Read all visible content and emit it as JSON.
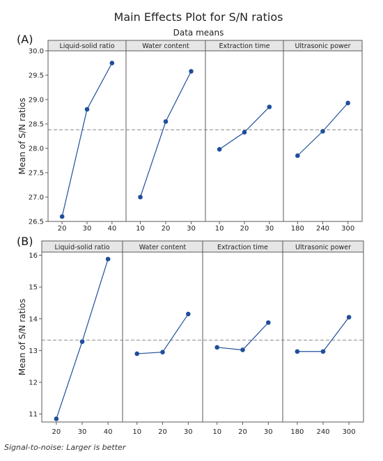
{
  "title": "Main Effects Plot for S/N ratios",
  "subtitle": "Data means",
  "footnote": "Signal-to-noise: Larger is better",
  "colors": {
    "series": "#1f4e9a",
    "mean_line": "#8a8a8a",
    "strip_bg": "#e6e6e6",
    "frame": "#5a5a5a"
  },
  "chart_data": [
    {
      "type": "line",
      "panel_label": "(A)",
      "ylabel": "Mean of S/N ratios",
      "ylim": [
        26.5,
        30.0
      ],
      "yticks": [
        "26.5",
        "27.0",
        "27.5",
        "28.0",
        "28.5",
        "29.0",
        "29.5",
        "30.0"
      ],
      "grand_mean": 28.38,
      "factors": [
        {
          "name": "Liquid-solid ratio",
          "x": [
            "20",
            "30",
            "40"
          ],
          "values": [
            26.6,
            28.8,
            29.75
          ]
        },
        {
          "name": "Water content",
          "x": [
            "10",
            "20",
            "30"
          ],
          "values": [
            27.0,
            28.55,
            29.58
          ]
        },
        {
          "name": "Extraction time",
          "x": [
            "10",
            "20",
            "30"
          ],
          "values": [
            27.98,
            28.33,
            28.85
          ]
        },
        {
          "name": "Ultrasonic power",
          "x": [
            "180",
            "240",
            "300"
          ],
          "values": [
            27.85,
            28.35,
            28.93
          ]
        }
      ]
    },
    {
      "type": "line",
      "panel_label": "(B)",
      "ylabel": "Mean of S/N ratios",
      "ylim": [
        10.75,
        16.1
      ],
      "yticks": [
        "11",
        "12",
        "13",
        "14",
        "15",
        "16"
      ],
      "grand_mean": 13.33,
      "factors": [
        {
          "name": "Liquid-solid ratio",
          "x": [
            "20",
            "30",
            "40"
          ],
          "values": [
            10.85,
            13.28,
            15.88
          ]
        },
        {
          "name": "Water content",
          "x": [
            "10",
            "20",
            "30"
          ],
          "values": [
            12.9,
            12.95,
            14.15
          ]
        },
        {
          "name": "Extraction time",
          "x": [
            "10",
            "20",
            "30"
          ],
          "values": [
            13.1,
            13.02,
            13.88
          ]
        },
        {
          "name": "Ultrasonic power",
          "x": [
            "180",
            "240",
            "300"
          ],
          "values": [
            12.97,
            12.97,
            14.05
          ]
        }
      ]
    }
  ]
}
